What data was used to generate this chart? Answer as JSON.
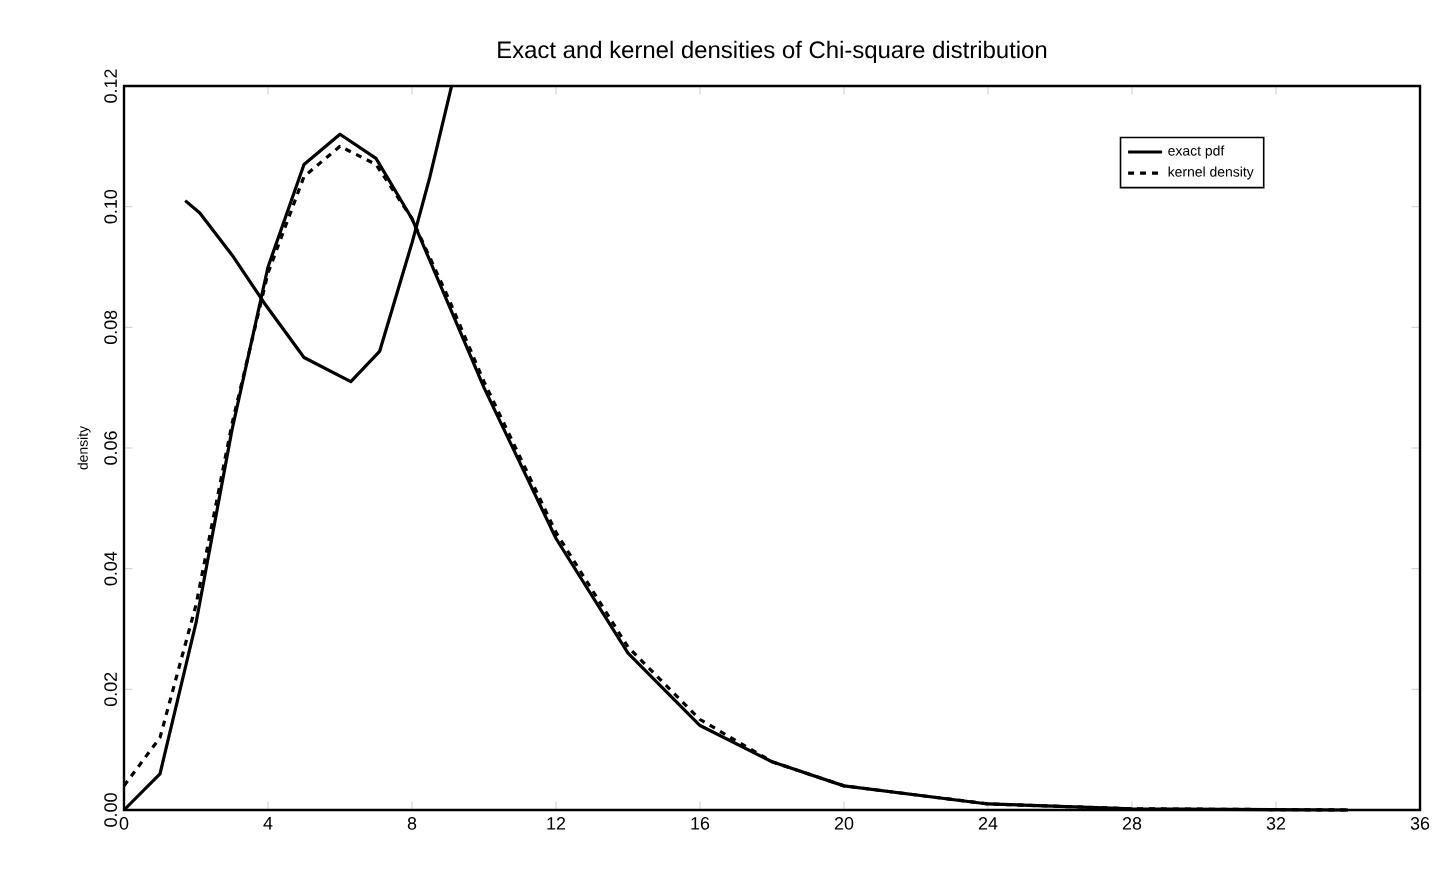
{
  "chart_data": {
    "type": "line",
    "title": "Exact and kernel densities of Chi-square distribution",
    "ylabel": "density",
    "xlim": [
      0,
      36
    ],
    "ylim": [
      0,
      0.12
    ],
    "xticks": [
      0,
      4,
      8,
      12,
      16,
      20,
      24,
      28,
      32,
      36
    ],
    "yticks": [
      {
        "value": 0,
        "label": "0.00"
      },
      {
        "value": 0.02,
        "label": "0.02"
      },
      {
        "value": 0.04,
        "label": "0.04"
      },
      {
        "value": 0.06,
        "label": "0.06"
      },
      {
        "value": 0.08,
        "label": "0.08"
      },
      {
        "value": 0.1,
        "label": "0.10"
      },
      {
        "value": 0.12,
        "label": "0.12"
      }
    ],
    "legend": "top right",
    "grid": false,
    "marker": "none",
    "series": [
      {
        "name": "exact pdf",
        "color": "#000000",
        "line_style": "solid",
        "x": [
          0,
          1,
          2,
          3,
          4,
          5,
          6,
          7,
          8,
          9,
          10,
          12,
          14,
          16,
          18,
          20,
          24,
          28,
          34
        ],
        "values": [
          0,
          0.006,
          0.031,
          0.063,
          0.09,
          0.107,
          0.112,
          0.108,
          0.098,
          0.084,
          0.07,
          0.045,
          0.026,
          0.014,
          0.008,
          0.004,
          0.001,
          0.0002,
          0
        ]
      },
      {
        "name": "kernel density",
        "color": "#000000",
        "line_style": "dashed",
        "x": [
          0,
          1,
          2,
          3,
          4,
          5,
          6,
          7,
          8,
          9,
          10,
          12,
          14,
          16,
          18,
          20,
          24,
          28,
          34
        ],
        "values": [
          0.004,
          0.012,
          0.034,
          0.064,
          0.089,
          0.105,
          0.11,
          0.107,
          0.098,
          0.085,
          0.071,
          0.046,
          0.027,
          0.015,
          0.008,
          0.004,
          0.001,
          0.0002,
          0
        ]
      },
      {
        "color": "#000000",
        "line_style": "solid",
        "x": [
          1.7,
          2.1,
          3,
          3.9,
          5,
          6.3,
          7.1,
          7.7,
          8,
          8.5,
          9.1
        ],
        "values": [
          0.101,
          0.099,
          0.092,
          0.084,
          0.075,
          0.071,
          0.076,
          0.088,
          0.094,
          0.105,
          0.12
        ]
      }
    ]
  }
}
